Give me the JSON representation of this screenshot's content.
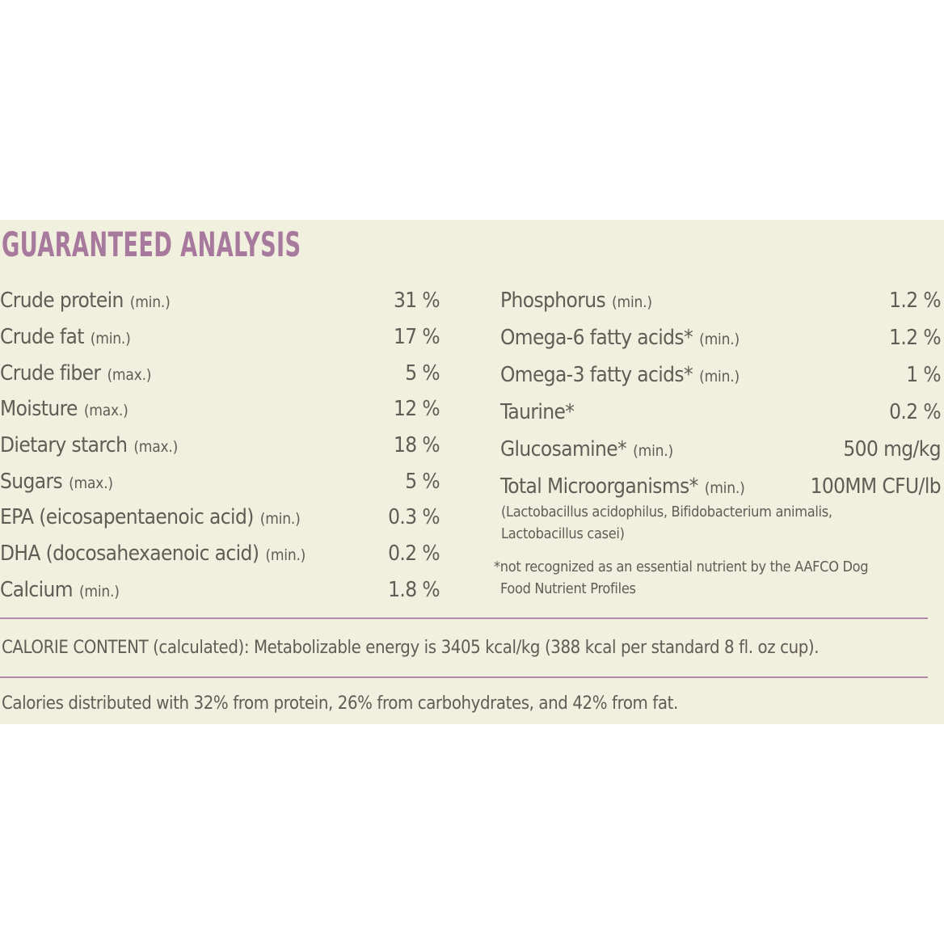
{
  "title": "GUARANTEED ANALYSIS",
  "left_items": [
    {
      "name": "Crude protein",
      "qualifier": "(min.)",
      "value": "31 %"
    },
    {
      "name": "Crude fat",
      "qualifier": "(min.)",
      "value": "17 %"
    },
    {
      "name": "Crude fiber",
      "qualifier": "(max.)",
      "value": "5 %"
    },
    {
      "name": "Moisture",
      "qualifier": "(max.)",
      "value": "12 %"
    },
    {
      "name": "Dietary starch",
      "qualifier": "(max.)",
      "value": "18 %"
    },
    {
      "name": "Sugars",
      "qualifier": "(max.)",
      "value": "5 %"
    },
    {
      "name": "EPA (eicosapentaenoic acid)",
      "qualifier": "(min.)",
      "value": "0.3 %"
    },
    {
      "name": "DHA (docosahexaenoic acid)",
      "qualifier": "(min.)",
      "value": "0.2 %"
    },
    {
      "name": "Calcium",
      "qualifier": "(min.)",
      "value": "1.8 %"
    }
  ],
  "right_items": [
    {
      "name": "Phosphorus",
      "qualifier": "(min.)",
      "value": "1.2 %"
    },
    {
      "name": "Omega-6 fatty acids*",
      "qualifier": "(min.)",
      "value": "1.2 %"
    },
    {
      "name": "Omega-3 fatty acids*",
      "qualifier": "(min.)",
      "value": "1 %"
    },
    {
      "name": "Taurine*",
      "qualifier": "",
      "value": "0.2 %"
    },
    {
      "name": "Glucosamine*",
      "qualifier": "(min.)",
      "value": "500 mg/kg"
    },
    {
      "name": "Total Microorganisms*",
      "qualifier": "(min.)",
      "value": "100MM CFU/lb"
    }
  ],
  "microorganisms_note": {
    "line1": "(Lactobacillus acidophilus, Bifidobacterium animalis,",
    "line2": "Lactobacillus casei)"
  },
  "footnote": {
    "line1": "*not recognized as an essential nutrient by the AAFCO Dog",
    "line2": "Food Nutrient Profiles"
  },
  "calorie_content": "CALORIE CONTENT (calculated): Metabolizable energy is 3405 kcal/kg (388 kcal per standard 8 fl. oz cup).",
  "calorie_distribution": "Calories distributed with 32% from protein, 26% from carbohydrates, and 42% from fat."
}
